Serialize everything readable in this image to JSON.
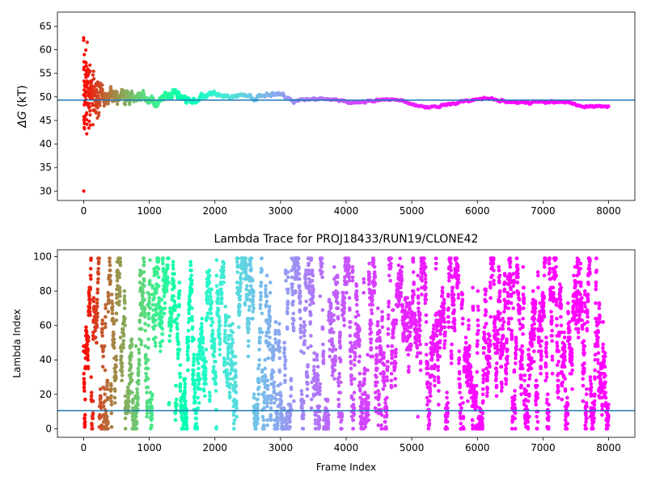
{
  "chart_data": [
    {
      "type": "scatter",
      "title": "",
      "xlabel": "",
      "ylabel": "ΔG (kT)",
      "ylabel_symbol": "ΔG",
      "ylabel_unit": " (kT)",
      "xlim": [
        -400,
        8400
      ],
      "ylim": [
        28,
        68
      ],
      "xticks": [
        0,
        1000,
        2000,
        3000,
        4000,
        5000,
        6000,
        7000,
        8000
      ],
      "yticks": [
        30,
        35,
        40,
        45,
        50,
        55,
        60,
        65
      ],
      "xtick_labels": [
        "0",
        "1000",
        "2000",
        "3000",
        "4000",
        "5000",
        "6000",
        "7000",
        "8000"
      ],
      "ytick_labels": [
        "30",
        "35",
        "40",
        "45",
        "50",
        "55",
        "60",
        "65"
      ],
      "colormap": "rainbow",
      "color_by": "frame index (red at frame 0, violet at frame 8000)",
      "hline": 49.3,
      "hline_color": "#1f77b4",
      "frames": [
        0,
        8000
      ],
      "trace_x": [
        0,
        20,
        40,
        60,
        80,
        100,
        150,
        200,
        250,
        300,
        400,
        500,
        600,
        700,
        800,
        900,
        1000,
        1100,
        1200,
        1300,
        1400,
        1500,
        1600,
        1700,
        1800,
        1900,
        2000,
        2200,
        2400,
        2600,
        2800,
        3000,
        3200,
        3400,
        3600,
        3800,
        4000,
        4200,
        4400,
        4600,
        4800,
        5000,
        5200,
        5400,
        5600,
        5800,
        6000,
        6200,
        6400,
        6600,
        6800,
        7000,
        7200,
        7400,
        7600,
        7800,
        8000
      ],
      "trace_center": [
        50,
        50,
        50,
        50,
        50,
        50,
        50,
        50,
        50,
        50,
        50,
        50,
        50,
        49.5,
        50,
        49,
        49.5,
        49,
        49.5,
        50.5,
        50.5,
        50,
        49.5,
        49,
        50,
        50.5,
        50.5,
        50,
        50.5,
        49.5,
        50.5,
        50.5,
        49,
        49.5,
        49.5,
        49.5,
        49,
        48.8,
        49.3,
        49.5,
        49.5,
        48.5,
        47.9,
        48,
        48.5,
        49,
        49.5,
        49.7,
        49,
        48.8,
        48.8,
        49,
        49,
        48.8,
        48,
        47.9,
        48
      ],
      "trace_spread": [
        16,
        12,
        10,
        8,
        7,
        6,
        5,
        4,
        3.5,
        3,
        2.5,
        2.2,
        2,
        1.8,
        1.6,
        1.5,
        1.4,
        1.3,
        1.2,
        1.2,
        1.2,
        1.1,
        1,
        0.9,
        0.9,
        0.8,
        0.8,
        0.7,
        0.6,
        0.5,
        0.5,
        0.5,
        0.4,
        0.3,
        0.3,
        0.3,
        0.3,
        0.3,
        0.3,
        0.3,
        0.3,
        0.3,
        0.3,
        0.3,
        0.3,
        0.3,
        0.3,
        0.3,
        0.3,
        0.3,
        0.3,
        0.3,
        0.3,
        0.3,
        0.3,
        0.3,
        0.3
      ],
      "approx_point_count": 8000
    },
    {
      "type": "scatter",
      "title": "Lambda Trace for PROJ18433/RUN19/CLONE42",
      "xlabel": "Frame Index",
      "ylabel": "Lambda Index",
      "xlim": [
        -400,
        8400
      ],
      "ylim": [
        -5,
        104
      ],
      "xticks": [
        0,
        1000,
        2000,
        3000,
        4000,
        5000,
        6000,
        7000,
        8000
      ],
      "yticks": [
        0,
        20,
        40,
        60,
        80,
        100
      ],
      "xtick_labels": [
        "0",
        "1000",
        "2000",
        "3000",
        "4000",
        "5000",
        "6000",
        "7000",
        "8000"
      ],
      "ytick_labels": [
        "0",
        "20",
        "40",
        "60",
        "80",
        "100"
      ],
      "colormap": "rainbow",
      "color_by": "frame index (red at frame 0, violet at frame 8000)",
      "hline": 10.5,
      "hline_color": "#1f77b4",
      "lambda_range": [
        0,
        99
      ],
      "approx_point_count": 8000
    }
  ]
}
